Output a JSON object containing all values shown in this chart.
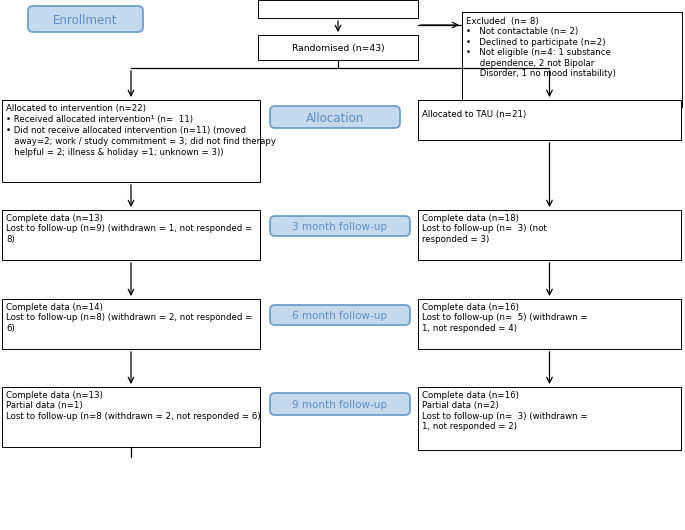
{
  "enrollment_label": "Enrollment",
  "allocation_label": "Allocation",
  "followup_3": "3 month follow-up",
  "followup_6": "6 month follow-up",
  "followup_9": "9 month follow-up",
  "randomised_text": "Randomised (n=43)",
  "excluded_text": "Excluded  (n= 8)\n•   Not contactable (n= 2)\n•   Declined to participate (n=2)\n•   Not eligible (n=4: 1 substance\n     dependence, 2 not Bipolar\n     Disorder, 1 no mood instability)",
  "alloc_left_line1": "Allocated to intervention (n=22)",
  "alloc_left_line2": "• Received allocated intervention¹ (n=  11)",
  "alloc_left_line3": "• Did not receive allocated intervention (n=11) (moved",
  "alloc_left_line4": "   away=2; work / study commitment = 3; did not find therapy",
  "alloc_left_line5": "   helpful = 2; illness & holiday =1; unknown = 3))",
  "alloc_right_text": "Allocated to TAU (n=21)",
  "followup3_left_text": "Complete data (n=13)\nLost to follow-up (n=9) (withdrawn = 1, not responded =\n8)",
  "followup3_right_text": "Complete data (n=18)\nLost to follow-up (n=  3) (not\nresponded = 3)",
  "followup6_left_text": "Complete data (n=14)\nLost to follow-up (n=8) (withdrawn = 2, not responded =\n6)",
  "followup6_right_text": "Complete data (n=16)\nLost to follow-up (n=  5) (withdrawn =\n1, not responded = 4)",
  "followup9_left_text": "Complete data (n=13)\nPartial data (n=1)\nLost to follow-up (n=8 (withdrawn = 2, not responded = 6)",
  "followup9_right_text": "Complete data (n=16)\nPartial data (n=2)\nLost to follow-up (n=  3) (withdrawn =\n1, not responded = 2)",
  "bg_color": "#ffffff",
  "blue_text_color": "#5b8fc9",
  "label_fill": "#c5d9ee",
  "label_edge": "#6699cc",
  "font_size": 6.2,
  "label_font_size": 8.5
}
